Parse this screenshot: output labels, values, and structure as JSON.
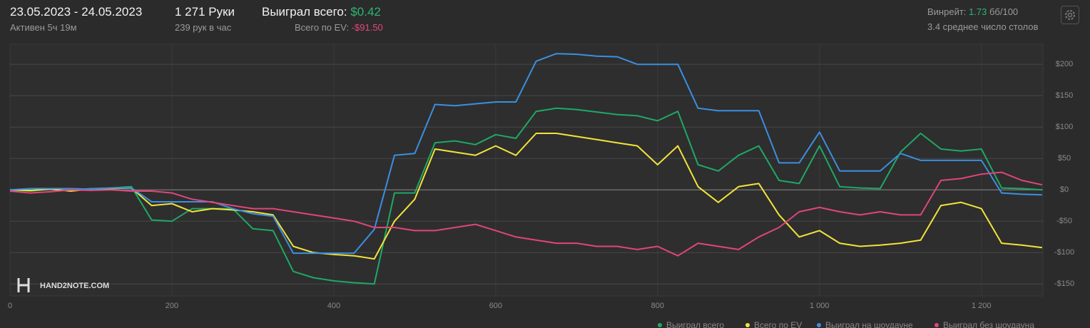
{
  "header": {
    "date_range": "23.05.2023 - 24.05.2023",
    "active": "Активен 5ч 19м",
    "hands": "1 271 Руки",
    "hands_per_hour": "239 рук в час",
    "won_label": "Выиграл всего:",
    "won_value": "$0.42",
    "ev_label": "Всего по EV:",
    "ev_value": "-$91.50",
    "winrate_label": "Винрейт:",
    "winrate_value": "1.73",
    "winrate_unit": "бб/100",
    "avg_tables": "3.4 среднее число столов"
  },
  "chart_data": {
    "type": "line",
    "watermark": "HAND2NOTE.COM",
    "x": [
      0,
      25,
      50,
      75,
      100,
      125,
      150,
      175,
      200,
      225,
      250,
      275,
      300,
      325,
      350,
      375,
      400,
      425,
      450,
      475,
      500,
      525,
      550,
      575,
      600,
      625,
      650,
      675,
      700,
      725,
      750,
      775,
      800,
      825,
      850,
      875,
      900,
      925,
      950,
      975,
      1000,
      1025,
      1050,
      1075,
      1100,
      1125,
      1150,
      1175,
      1200,
      1225,
      1250,
      1275
    ],
    "series": [
      {
        "name": "Выиграл всего",
        "color": "#1fa866",
        "values": [
          0,
          -2,
          1,
          0,
          2,
          3,
          5,
          -48,
          -50,
          -30,
          -30,
          -30,
          -62,
          -65,
          -130,
          -140,
          -145,
          -148,
          -150,
          -5,
          -5,
          75,
          78,
          72,
          88,
          82,
          125,
          130,
          128,
          124,
          120,
          118,
          110,
          125,
          40,
          30,
          55,
          70,
          15,
          10,
          70,
          5,
          3,
          2,
          60,
          90,
          65,
          62,
          65,
          3,
          2,
          0
        ]
      },
      {
        "name": "Всего по EV",
        "color": "#f2e33a",
        "values": [
          0,
          -1,
          1,
          -2,
          1,
          2,
          3,
          -25,
          -22,
          -35,
          -30,
          -32,
          -35,
          -40,
          -90,
          -100,
          -103,
          -105,
          -110,
          -50,
          -15,
          65,
          60,
          55,
          70,
          55,
          90,
          90,
          85,
          80,
          75,
          70,
          40,
          70,
          5,
          -20,
          5,
          10,
          -40,
          -75,
          -65,
          -85,
          -90,
          -88,
          -85,
          -80,
          -25,
          -20,
          -30,
          -85,
          -88,
          -92
        ]
      },
      {
        "name": "Выиграл на шоудауне",
        "color": "#3b8fe0",
        "values": [
          0,
          2,
          2,
          2,
          1,
          3,
          3,
          -19,
          -19,
          -19,
          -19,
          -30,
          -38,
          -42,
          -101,
          -101,
          -101,
          -101,
          -63,
          55,
          58,
          136,
          134,
          137,
          140,
          140,
          205,
          217,
          216,
          213,
          212,
          200,
          200,
          200,
          130,
          126,
          126,
          126,
          43,
          43,
          92,
          30,
          30,
          30,
          58,
          47,
          47,
          47,
          47,
          -5,
          -7,
          -8
        ]
      },
      {
        "name": "Выиграл без шоудауна",
        "color": "#e0457a",
        "values": [
          -2,
          -5,
          -3,
          0,
          -1,
          0,
          -2,
          -2,
          -5,
          -15,
          -20,
          -25,
          -30,
          -30,
          -35,
          -40,
          -45,
          -50,
          -60,
          -60,
          -65,
          -65,
          -60,
          -55,
          -65,
          -75,
          -80,
          -85,
          -85,
          -90,
          -90,
          -95,
          -90,
          -105,
          -85,
          -90,
          -95,
          -75,
          -60,
          -35,
          -28,
          -35,
          -40,
          -35,
          -40,
          -40,
          15,
          18,
          25,
          28,
          15,
          8
        ]
      }
    ],
    "xlim": [
      0,
      1276
    ],
    "ylim": [
      -169,
      232
    ],
    "xticks": [
      0,
      200,
      400,
      600,
      800,
      {
        "value": 1000,
        "label": "1 000"
      },
      {
        "value": 1200,
        "label": "1 200"
      }
    ],
    "yticks": [
      {
        "value": -150,
        "label": "-$150"
      },
      {
        "value": -100,
        "label": "-$100"
      },
      {
        "value": -50,
        "label": "-$50"
      },
      {
        "value": 0,
        "label": "$0"
      },
      {
        "value": 50,
        "label": "$50"
      },
      {
        "value": 100,
        "label": "$100"
      },
      {
        "value": 150,
        "label": "$150"
      },
      {
        "value": 200,
        "label": "$200"
      }
    ],
    "grid": true
  }
}
